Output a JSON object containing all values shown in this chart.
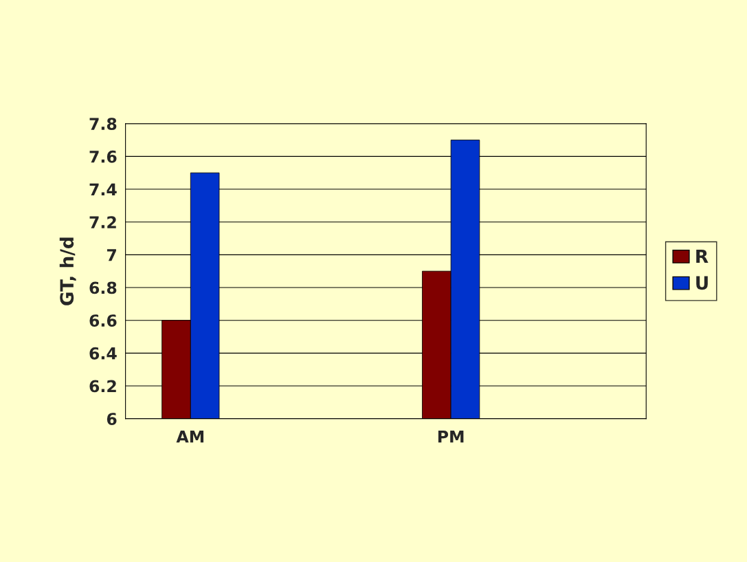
{
  "chart_data": {
    "type": "bar",
    "ylabel": "GT, h/d",
    "categories": [
      "AM",
      null,
      "PM",
      null
    ],
    "series": [
      {
        "name": "R",
        "color": "#800000",
        "values": [
          6.6,
          null,
          6.9,
          null
        ]
      },
      {
        "name": "U",
        "color": "#0033cc",
        "values": [
          7.5,
          null,
          7.7,
          null
        ]
      }
    ],
    "ylim": [
      6,
      7.8
    ],
    "yticks": [
      6,
      6.2,
      6.4,
      6.6,
      6.8,
      7,
      7.2,
      7.4,
      7.6,
      7.8
    ],
    "grid": "y",
    "legend": "right"
  }
}
